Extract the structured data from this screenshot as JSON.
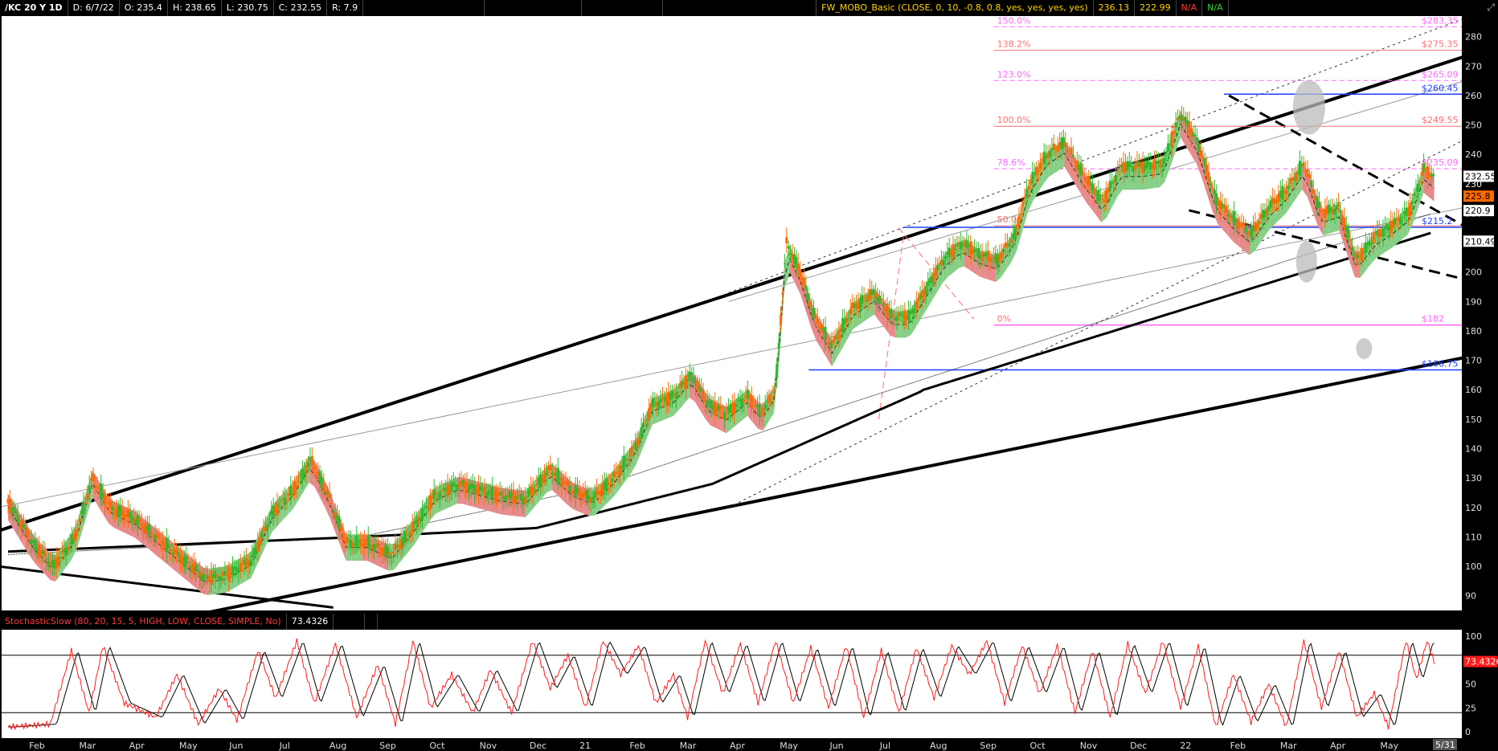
{
  "header": {
    "symbol": "/KC 20 Y 1D",
    "date": "D: 6/7/22",
    "open": "O: 235.4",
    "high": "H: 238.65",
    "low": "L: 230.75",
    "close": "C: 232.55",
    "range": "R: 7.9",
    "indicator": "FW_MOBO_Basic (CLOSE, 0, 10, -0.8, 0.8, yes, yes, yes, yes)",
    "indicator_v1": "236.13",
    "indicator_v2": "222.99",
    "indicator_v3": "N/A",
    "indicator_v4": "N/A",
    "corner_icon": "expand-icon"
  },
  "colors": {
    "background": "#ffffff",
    "grid": "#e6e6e6",
    "up": "#2eb82e",
    "down": "#ff6a00",
    "band_up": "#86cf86",
    "band_down": "#e88a8a",
    "support_blue": "#1f3fff",
    "fib_red": "#ff6f6f",
    "fib_pink": "#ff66ff",
    "trend": "#000000",
    "stoch_k": "#ff1a1a",
    "stoch_d": "#000000"
  },
  "chart_data": [
    {
      "type": "line",
      "panel": "price",
      "y_ticks": [
        "280",
        "270",
        "260",
        "250",
        "240",
        "230",
        "220",
        "210",
        "200",
        "190",
        "180",
        "170",
        "160",
        "150",
        "140",
        "130",
        "120",
        "110",
        "100",
        "90"
      ],
      "ylim": [
        85,
        287
      ],
      "x_ticks": [
        "Feb",
        "Mar",
        "Apr",
        "May",
        "Jun",
        "Jul",
        "Aug",
        "Sep",
        "Oct",
        "Nov",
        "Dec",
        "21",
        "Feb",
        "Mar",
        "Apr",
        "May",
        "Jun",
        "Jul",
        "Aug",
        "Sep",
        "Oct",
        "Nov",
        "Dec",
        "22",
        "Feb",
        "Mar",
        "Apr",
        "May"
      ],
      "x_cursor_label": "5/31",
      "months_total": 29.5,
      "price_path": [
        [
          0,
          122
        ],
        [
          0.7,
          108
        ],
        [
          1.3,
          100
        ],
        [
          1.9,
          110
        ],
        [
          2.4,
          130
        ],
        [
          2.9,
          120
        ],
        [
          3.6,
          116
        ],
        [
          4.2,
          110
        ],
        [
          5.0,
          102
        ],
        [
          5.6,
          96
        ],
        [
          6.2,
          97
        ],
        [
          6.9,
          102
        ],
        [
          7.5,
          118
        ],
        [
          8.1,
          126
        ],
        [
          8.6,
          136
        ],
        [
          9.1,
          124
        ],
        [
          9.6,
          108
        ],
        [
          10.2,
          108
        ],
        [
          10.9,
          104
        ],
        [
          11.5,
          113
        ],
        [
          12.1,
          124
        ],
        [
          12.8,
          128
        ],
        [
          13.4,
          126
        ],
        [
          14.0,
          124
        ],
        [
          14.7,
          123
        ],
        [
          15.4,
          133
        ],
        [
          16.0,
          126
        ],
        [
          16.6,
          123
        ],
        [
          17.2,
          130
        ],
        [
          17.8,
          140
        ],
        [
          18.3,
          155
        ],
        [
          18.9,
          158
        ],
        [
          19.4,
          165
        ],
        [
          19.9,
          155
        ],
        [
          20.4,
          152
        ],
        [
          21.0,
          158
        ],
        [
          21.4,
          152
        ],
        [
          21.8,
          160
        ],
        [
          22.1,
          210
        ],
        [
          22.5,
          200
        ],
        [
          22.9,
          185
        ],
        [
          23.4,
          175
        ],
        [
          24.0,
          188
        ],
        [
          24.6,
          193
        ],
        [
          25.1,
          185
        ],
        [
          25.6,
          185
        ],
        [
          26.1,
          195
        ],
        [
          26.6,
          205
        ],
        [
          27.1,
          210
        ],
        [
          27.6,
          206
        ],
        [
          28.1,
          204
        ],
        [
          28.6,
          213
        ]
      ],
      "price_path_2": [
        [
          28.6,
          213
        ],
        [
          29.0,
          230
        ],
        [
          29.5,
          240
        ],
        [
          30.0,
          244
        ],
        [
          30.6,
          232
        ],
        [
          31.1,
          224
        ],
        [
          31.6,
          236
        ],
        [
          32.2,
          236
        ],
        [
          32.8,
          237
        ],
        [
          33.3,
          254
        ],
        [
          33.8,
          244
        ],
        [
          34.3,
          225
        ],
        [
          34.8,
          218
        ],
        [
          35.3,
          213
        ],
        [
          35.8,
          222
        ],
        [
          36.3,
          228
        ],
        [
          36.8,
          237
        ],
        [
          37.3,
          220
        ],
        [
          37.8,
          222
        ],
        [
          38.3,
          204
        ],
        [
          38.8,
          212
        ],
        [
          39.3,
          216
        ],
        [
          39.8,
          221
        ],
        [
          40.2,
          235
        ],
        [
          40.5,
          232
        ]
      ],
      "support_levels": [
        {
          "label": "$260.45",
          "value": 260.45,
          "color": "blue"
        },
        {
          "label": "$215.2",
          "value": 215.2,
          "color": "blue"
        },
        {
          "label": "$166.75",
          "value": 166.75,
          "color": "blue"
        },
        {
          "label": "$182",
          "value": 182,
          "color": "pink"
        }
      ],
      "fib_levels": [
        {
          "pct": "150.0%",
          "price": "$283.35",
          "value": 283.35,
          "dashed": true
        },
        {
          "pct": "138.2%",
          "price": "$275.35",
          "value": 275.35,
          "dashed": false
        },
        {
          "pct": "123.0%",
          "price": "$265.09",
          "value": 265.09,
          "dashed": true
        },
        {
          "pct": "100.0%",
          "price": "$249.55",
          "value": 249.55,
          "dashed": false
        },
        {
          "pct": "78.6%",
          "price": "$235.09",
          "value": 235.09,
          "dashed": true
        },
        {
          "pct": "50.0%",
          "price": "",
          "value": 215.7,
          "dashed": false
        },
        {
          "pct": "0%",
          "price": "",
          "value": 182,
          "dashed": false
        }
      ],
      "right_labels": [
        {
          "text": "232.55",
          "value": 232.55,
          "style": "white"
        },
        {
          "text": "230",
          "value": 230,
          "style": "plain"
        },
        {
          "text": "225.8",
          "value": 225.8,
          "style": "orange"
        },
        {
          "text": "220.9",
          "value": 220.9,
          "style": "white"
        },
        {
          "text": "210.49",
          "value": 210.49,
          "style": "white"
        }
      ]
    },
    {
      "type": "line",
      "panel": "stochastic",
      "title": "StochasticSlow (80, 20, 15, 5, HIGH, LOW, CLOSE, SIMPLE, No)",
      "value_label": "73.4326",
      "y_ticks": [
        "100",
        "75",
        "50",
        "25",
        "0"
      ],
      "ylim": [
        0,
        100
      ],
      "levels": [
        80,
        20
      ],
      "k_path": [
        [
          0,
          5
        ],
        [
          1.2,
          8
        ],
        [
          1.8,
          85
        ],
        [
          2.3,
          20
        ],
        [
          2.7,
          90
        ],
        [
          3.3,
          30
        ],
        [
          4.2,
          15
        ],
        [
          4.8,
          60
        ],
        [
          5.4,
          8
        ],
        [
          6.0,
          45
        ],
        [
          6.5,
          12
        ],
        [
          7.1,
          85
        ],
        [
          7.6,
          35
        ],
        [
          8.2,
          95
        ],
        [
          8.7,
          30
        ],
        [
          9.3,
          92
        ],
        [
          9.9,
          15
        ],
        [
          10.5,
          70
        ],
        [
          11.0,
          8
        ],
        [
          11.5,
          95
        ],
        [
          12.0,
          25
        ],
        [
          12.6,
          60
        ],
        [
          13.2,
          20
        ],
        [
          13.7,
          65
        ],
        [
          14.3,
          20
        ],
        [
          14.9,
          95
        ],
        [
          15.4,
          45
        ],
        [
          15.9,
          80
        ],
        [
          16.4,
          25
        ],
        [
          16.9,
          95
        ],
        [
          17.4,
          60
        ],
        [
          17.9,
          90
        ],
        [
          18.4,
          30
        ],
        [
          18.9,
          60
        ],
        [
          19.3,
          15
        ],
        [
          19.8,
          95
        ],
        [
          20.3,
          40
        ],
        [
          20.8,
          92
        ],
        [
          21.3,
          30
        ],
        [
          21.8,
          95
        ],
        [
          22.3,
          30
        ],
        [
          22.8,
          88
        ],
        [
          23.3,
          25
        ],
        [
          23.8,
          90
        ],
        [
          24.3,
          15
        ],
        [
          24.8,
          85
        ],
        [
          25.3,
          20
        ],
        [
          25.8,
          88
        ],
        [
          26.3,
          35
        ],
        [
          26.8,
          90
        ],
        [
          27.3,
          60
        ],
        [
          27.8,
          95
        ],
        [
          28.3,
          30
        ],
        [
          28.8,
          90
        ],
        [
          29.3,
          40
        ],
        [
          29.8,
          90
        ],
        [
          30.3,
          20
        ],
        [
          30.8,
          85
        ],
        [
          31.3,
          15
        ],
        [
          31.8,
          92
        ],
        [
          32.3,
          40
        ],
        [
          32.8,
          95
        ],
        [
          33.3,
          25
        ],
        [
          33.8,
          90
        ],
        [
          34.3,
          5
        ],
        [
          34.8,
          60
        ],
        [
          35.3,
          10
        ],
        [
          35.8,
          50
        ],
        [
          36.3,
          5
        ],
        [
          36.8,
          95
        ],
        [
          37.3,
          25
        ],
        [
          37.8,
          85
        ],
        [
          38.3,
          15
        ],
        [
          38.8,
          40
        ],
        [
          39.2,
          5
        ],
        [
          39.7,
          95
        ],
        [
          40.0,
          55
        ],
        [
          40.3,
          95
        ],
        [
          40.5,
          73
        ]
      ]
    }
  ]
}
